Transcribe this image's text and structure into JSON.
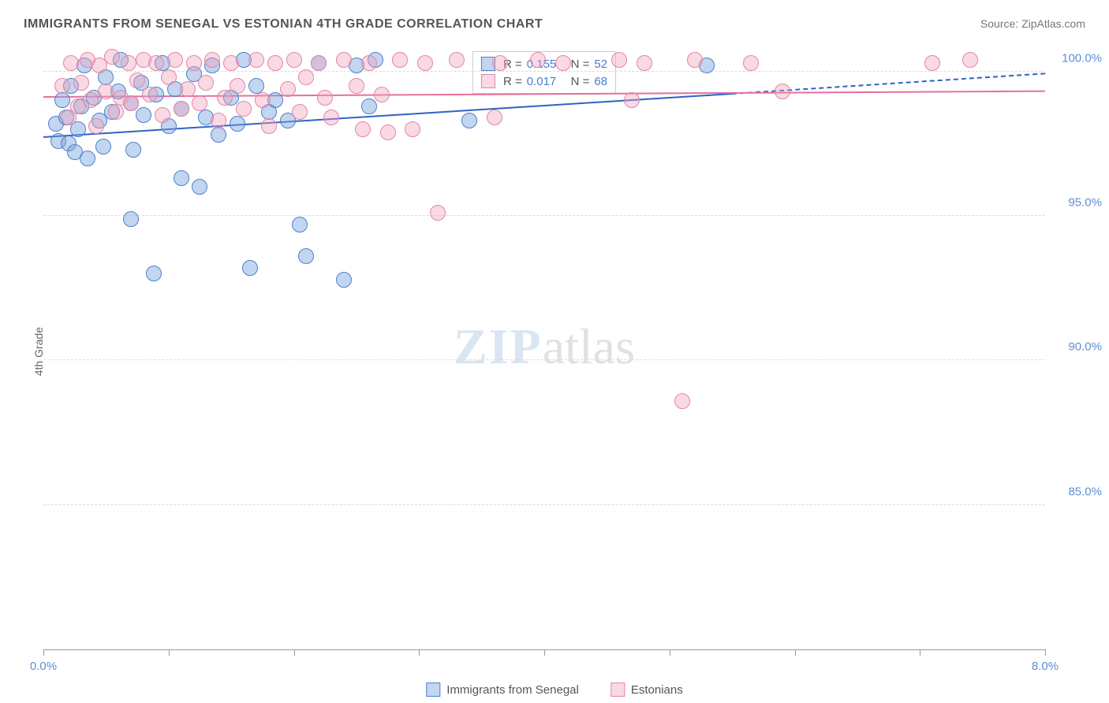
{
  "title": "IMMIGRANTS FROM SENEGAL VS ESTONIAN 4TH GRADE CORRELATION CHART",
  "source": "Source: ZipAtlas.com",
  "watermark": {
    "part1": "ZIP",
    "part2": "atlas"
  },
  "y_axis_label": "4th Grade",
  "chart": {
    "type": "scatter",
    "xlim": [
      0.0,
      8.0
    ],
    "ylim": [
      80.0,
      101.0
    ],
    "yticks": [
      85.0,
      90.0,
      95.0,
      100.0
    ],
    "ytick_labels": [
      "85.0%",
      "90.0%",
      "95.0%",
      "100.0%"
    ],
    "xticks": [
      0.0,
      1.0,
      2.0,
      3.0,
      4.0,
      5.0,
      6.0,
      7.0,
      8.0
    ],
    "xtick_labels": {
      "first": "0.0%",
      "last": "8.0%"
    },
    "background_color": "#ffffff",
    "grid_color": "#dcdcdc",
    "marker_radius": 10,
    "marker_border_width": 1,
    "series": [
      {
        "name": "Immigrants from Senegal",
        "key": "senegal",
        "fill": "rgba(120,165,225,0.45)",
        "stroke": "#4f80c8",
        "trend_color": "#2f63c4",
        "trend": {
          "x1": 0.0,
          "y1": 97.7,
          "x2": 5.5,
          "y2": 99.2,
          "solid": true
        },
        "trend_ext": {
          "x1": 5.5,
          "y1": 99.2,
          "x2": 8.0,
          "y2": 99.9
        },
        "r_label": "0.155",
        "n_label": "52",
        "points": [
          [
            0.1,
            98.2
          ],
          [
            0.12,
            97.6
          ],
          [
            0.15,
            99.0
          ],
          [
            0.18,
            98.4
          ],
          [
            0.2,
            97.5
          ],
          [
            0.22,
            99.5
          ],
          [
            0.25,
            97.2
          ],
          [
            0.28,
            98.0
          ],
          [
            0.3,
            98.8
          ],
          [
            0.33,
            100.2
          ],
          [
            0.35,
            97.0
          ],
          [
            0.4,
            99.1
          ],
          [
            0.45,
            98.3
          ],
          [
            0.48,
            97.4
          ],
          [
            0.5,
            99.8
          ],
          [
            0.55,
            98.6
          ],
          [
            0.6,
            99.3
          ],
          [
            0.62,
            100.4
          ],
          [
            0.7,
            94.9
          ],
          [
            0.7,
            98.9
          ],
          [
            0.72,
            97.3
          ],
          [
            0.78,
            99.6
          ],
          [
            0.8,
            98.5
          ],
          [
            0.88,
            93.0
          ],
          [
            0.9,
            99.2
          ],
          [
            0.95,
            100.3
          ],
          [
            1.0,
            98.1
          ],
          [
            1.05,
            99.4
          ],
          [
            1.1,
            96.3
          ],
          [
            1.1,
            98.7
          ],
          [
            1.2,
            99.9
          ],
          [
            1.25,
            96.0
          ],
          [
            1.3,
            98.4
          ],
          [
            1.35,
            100.2
          ],
          [
            1.4,
            97.8
          ],
          [
            1.5,
            99.1
          ],
          [
            1.55,
            98.2
          ],
          [
            1.6,
            100.4
          ],
          [
            1.65,
            93.2
          ],
          [
            1.7,
            99.5
          ],
          [
            1.8,
            98.6
          ],
          [
            1.85,
            99.0
          ],
          [
            1.95,
            98.3
          ],
          [
            2.05,
            94.7
          ],
          [
            2.1,
            93.6
          ],
          [
            2.2,
            100.3
          ],
          [
            2.4,
            92.8
          ],
          [
            2.5,
            100.2
          ],
          [
            2.6,
            98.8
          ],
          [
            2.65,
            100.4
          ],
          [
            3.4,
            98.3
          ],
          [
            5.3,
            100.2
          ]
        ]
      },
      {
        "name": "Estonians",
        "key": "estonians",
        "fill": "rgba(240,160,185,0.40)",
        "stroke": "#e386a5",
        "trend_color": "#e76ea0",
        "trend": {
          "x1": 0.0,
          "y1": 99.1,
          "x2": 8.0,
          "y2": 99.3,
          "solid": true
        },
        "r_label": "0.017",
        "n_label": "68",
        "points": [
          [
            0.15,
            99.5
          ],
          [
            0.2,
            98.4
          ],
          [
            0.22,
            100.3
          ],
          [
            0.28,
            98.8
          ],
          [
            0.3,
            99.6
          ],
          [
            0.35,
            100.4
          ],
          [
            0.38,
            99.0
          ],
          [
            0.42,
            98.1
          ],
          [
            0.45,
            100.2
          ],
          [
            0.5,
            99.3
          ],
          [
            0.55,
            100.5
          ],
          [
            0.58,
            98.6
          ],
          [
            0.62,
            99.1
          ],
          [
            0.68,
            100.3
          ],
          [
            0.7,
            98.9
          ],
          [
            0.75,
            99.7
          ],
          [
            0.8,
            100.4
          ],
          [
            0.85,
            99.2
          ],
          [
            0.9,
            100.3
          ],
          [
            0.95,
            98.5
          ],
          [
            1.0,
            99.8
          ],
          [
            1.05,
            100.4
          ],
          [
            1.1,
            98.7
          ],
          [
            1.15,
            99.4
          ],
          [
            1.2,
            100.3
          ],
          [
            1.25,
            98.9
          ],
          [
            1.3,
            99.6
          ],
          [
            1.35,
            100.4
          ],
          [
            1.4,
            98.3
          ],
          [
            1.45,
            99.1
          ],
          [
            1.5,
            100.3
          ],
          [
            1.55,
            99.5
          ],
          [
            1.6,
            98.7
          ],
          [
            1.7,
            100.4
          ],
          [
            1.75,
            99.0
          ],
          [
            1.8,
            98.1
          ],
          [
            1.85,
            100.3
          ],
          [
            1.95,
            99.4
          ],
          [
            2.0,
            100.4
          ],
          [
            2.05,
            98.6
          ],
          [
            2.1,
            99.8
          ],
          [
            2.2,
            100.3
          ],
          [
            2.25,
            99.1
          ],
          [
            2.3,
            98.4
          ],
          [
            2.4,
            100.4
          ],
          [
            2.5,
            99.5
          ],
          [
            2.55,
            98.0
          ],
          [
            2.6,
            100.3
          ],
          [
            2.7,
            99.2
          ],
          [
            2.75,
            97.9
          ],
          [
            2.85,
            100.4
          ],
          [
            2.95,
            98.0
          ],
          [
            3.05,
            100.3
          ],
          [
            3.15,
            95.1
          ],
          [
            3.3,
            100.4
          ],
          [
            3.6,
            98.4
          ],
          [
            3.65,
            100.3
          ],
          [
            3.95,
            100.4
          ],
          [
            4.15,
            100.3
          ],
          [
            4.6,
            100.4
          ],
          [
            4.7,
            99.0
          ],
          [
            4.8,
            100.3
          ],
          [
            5.1,
            88.6
          ],
          [
            5.2,
            100.4
          ],
          [
            5.65,
            100.3
          ],
          [
            5.9,
            99.3
          ],
          [
            7.1,
            100.3
          ],
          [
            7.4,
            100.4
          ]
        ]
      }
    ]
  },
  "stat_box": {
    "rows": [
      {
        "r_prefix": "R =",
        "n_prefix": "N ="
      },
      {
        "r_prefix": "R =",
        "n_prefix": "N ="
      }
    ]
  },
  "bottom_legend": {
    "items": [
      "Immigrants from Senegal",
      "Estonians"
    ]
  }
}
